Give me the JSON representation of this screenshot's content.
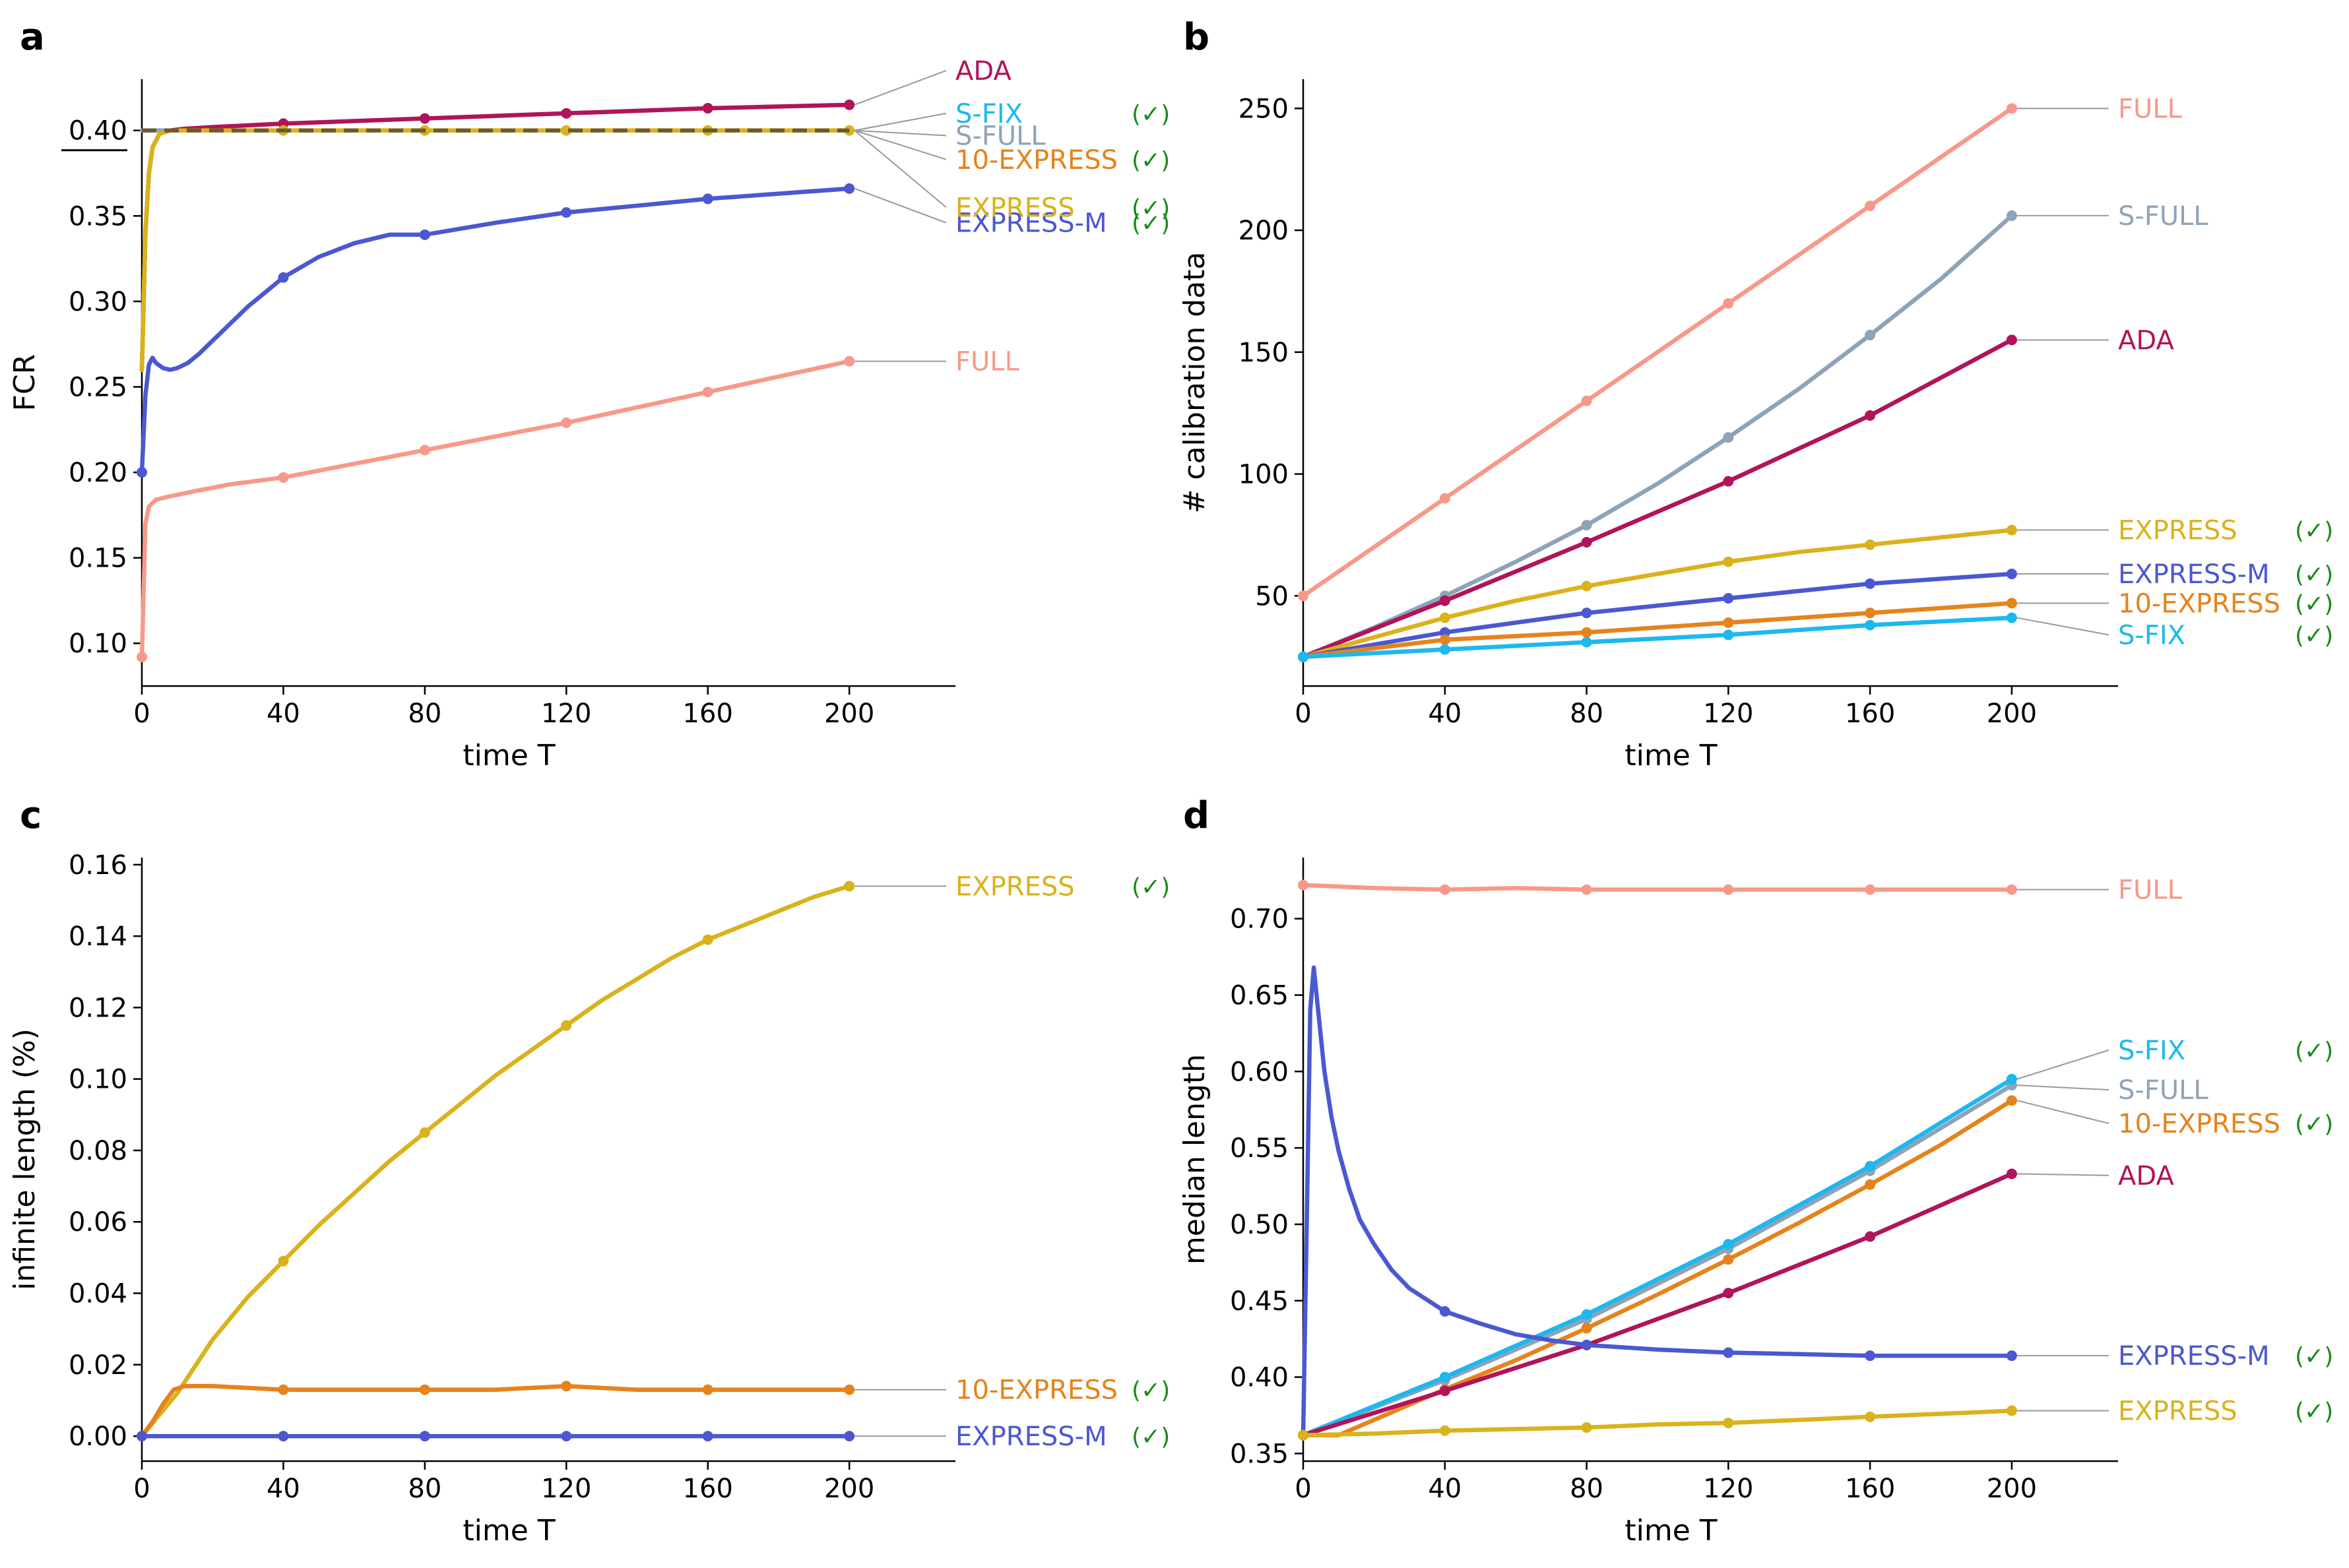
{
  "chart_data": [
    {
      "id": "a",
      "panel_letter": "a",
      "type": "line",
      "xlabel": "time T",
      "ylabel": "FCR",
      "xlim": [
        0,
        230
      ],
      "ylim": [
        0.075,
        0.43
      ],
      "xticks": [
        0,
        40,
        80,
        120,
        160,
        200
      ],
      "xtick_labels": [
        "0",
        "40",
        "80",
        "120",
        "160",
        "200"
      ],
      "yticks": [
        0.1,
        0.15,
        0.2,
        0.25,
        0.3,
        0.35,
        0.4
      ],
      "ytick_labels": [
        "0.10",
        "0.15",
        "0.20",
        "0.25",
        "0.30",
        "0.35",
        "0.40"
      ],
      "target_line": {
        "value": 0.4,
        "color": "#6b5a2e",
        "style": "dashed"
      },
      "series": [
        {
          "name": "FULL",
          "color": "#f7998a",
          "check": "",
          "label_y": 0.265,
          "x": [
            0,
            1,
            2,
            4,
            8,
            15,
            25,
            40,
            60,
            80,
            100,
            120,
            140,
            160,
            180,
            200
          ],
          "y": [
            0.092,
            0.17,
            0.18,
            0.184,
            0.186,
            0.189,
            0.193,
            0.197,
            0.205,
            0.213,
            0.221,
            0.229,
            0.238,
            0.247,
            0.256,
            0.265
          ],
          "markers_x": [
            0,
            40,
            80,
            120,
            160,
            200
          ]
        },
        {
          "name": "EXPRESS-M",
          "color": "#4b58d1",
          "check": "(✓)",
          "label_y": 0.346,
          "x": [
            0,
            1,
            2,
            3,
            4,
            6,
            8,
            10,
            13,
            16,
            20,
            25,
            30,
            40,
            50,
            60,
            70,
            80,
            100,
            120,
            140,
            160,
            180,
            200
          ],
          "y": [
            0.2,
            0.245,
            0.263,
            0.267,
            0.264,
            0.261,
            0.26,
            0.261,
            0.264,
            0.269,
            0.277,
            0.287,
            0.297,
            0.314,
            0.326,
            0.334,
            0.339,
            0.339,
            0.346,
            0.352,
            0.356,
            0.36,
            0.363,
            0.366
          ],
          "markers_x": [
            0,
            40,
            80,
            120,
            160,
            200
          ]
        },
        {
          "name": "ADA",
          "color": "#b0145a",
          "check": "",
          "label_y": 0.435,
          "x": [
            0,
            1,
            2,
            3,
            5,
            8,
            12,
            20,
            40,
            80,
            120,
            160,
            200
          ],
          "y": [
            0.26,
            0.34,
            0.375,
            0.39,
            0.398,
            0.4,
            0.401,
            0.402,
            0.404,
            0.407,
            0.41,
            0.413,
            0.415
          ],
          "markers_x": [
            40,
            80,
            120,
            160,
            200
          ]
        },
        {
          "name": "S-FIX",
          "color": "#1cb8ef",
          "check": "(✓)",
          "label_y": 0.41,
          "x": [
            0,
            1,
            2,
            3,
            5,
            8,
            12,
            20,
            200
          ],
          "y": [
            0.26,
            0.34,
            0.375,
            0.39,
            0.398,
            0.4,
            0.4,
            0.4,
            0.4
          ],
          "markers_x": []
        },
        {
          "name": "S-FULL",
          "color": "#8fa3b8",
          "check": "",
          "label_y": 0.397,
          "x": [
            0,
            200
          ],
          "y": [
            0.4,
            0.4
          ],
          "markers_x": []
        },
        {
          "name": "10-EXPRESS",
          "color": "#e5831c",
          "check": "(✓)",
          "label_y": 0.383,
          "x": [
            0,
            1,
            2,
            3,
            5,
            8,
            12,
            20,
            200
          ],
          "y": [
            0.26,
            0.34,
            0.375,
            0.39,
            0.398,
            0.4,
            0.4,
            0.4,
            0.4
          ],
          "markers_x": []
        },
        {
          "name": "EXPRESS",
          "color": "#d9b21c",
          "check": "(✓)",
          "label_y": 0.355,
          "x": [
            0,
            1,
            2,
            3,
            5,
            8,
            12,
            20,
            40,
            80,
            120,
            160,
            200
          ],
          "y": [
            0.26,
            0.34,
            0.375,
            0.39,
            0.398,
            0.4,
            0.4,
            0.4,
            0.4,
            0.4,
            0.4,
            0.4,
            0.4
          ],
          "markers_x": [
            40,
            80,
            120,
            160,
            200
          ]
        }
      ]
    },
    {
      "id": "b",
      "panel_letter": "b",
      "type": "line",
      "xlabel": "time T",
      "ylabel": "# calibration data",
      "xlim": [
        0,
        230
      ],
      "ylim": [
        13,
        262
      ],
      "xticks": [
        0,
        40,
        80,
        120,
        160,
        200
      ],
      "xtick_labels": [
        "0",
        "40",
        "80",
        "120",
        "160",
        "200"
      ],
      "yticks": [
        50,
        100,
        150,
        200,
        250
      ],
      "ytick_labels": [
        "50",
        "100",
        "150",
        "200",
        "250"
      ],
      "series": [
        {
          "name": "FULL",
          "color": "#f7998a",
          "check": "",
          "label_y": 250,
          "x": [
            0,
            40,
            80,
            120,
            160,
            200
          ],
          "y": [
            50,
            90,
            130,
            170,
            210,
            250
          ],
          "markers_x": [
            0,
            40,
            80,
            120,
            160,
            200
          ]
        },
        {
          "name": "S-FULL",
          "color": "#8fa3b8",
          "check": "",
          "label_y": 206,
          "x": [
            0,
            20,
            40,
            60,
            80,
            100,
            120,
            140,
            160,
            180,
            200
          ],
          "y": [
            25,
            37,
            50,
            64,
            79,
            96,
            115,
            135,
            157,
            180,
            206
          ],
          "markers_x": [
            0,
            40,
            80,
            120,
            160,
            200
          ]
        },
        {
          "name": "ADA",
          "color": "#b0145a",
          "check": "",
          "label_y": 155,
          "x": [
            0,
            40,
            80,
            120,
            160,
            200
          ],
          "y": [
            25,
            48,
            72,
            97,
            124,
            155
          ],
          "markers_x": [
            0,
            40,
            80,
            120,
            160,
            200
          ]
        },
        {
          "name": "EXPRESS",
          "color": "#d9b21c",
          "check": "(✓)",
          "label_y": 77,
          "x": [
            0,
            20,
            40,
            60,
            80,
            100,
            120,
            140,
            160,
            180,
            200
          ],
          "y": [
            25,
            33,
            41,
            48,
            54,
            59,
            64,
            68,
            71,
            74,
            77
          ],
          "markers_x": [
            0,
            40,
            80,
            120,
            160,
            200
          ]
        },
        {
          "name": "EXPRESS-M",
          "color": "#4b58d1",
          "check": "(✓)",
          "label_y": 59,
          "x": [
            0,
            20,
            40,
            60,
            80,
            100,
            120,
            140,
            160,
            180,
            200
          ],
          "y": [
            25,
            30,
            35,
            39,
            43,
            46,
            49,
            52,
            55,
            57,
            59
          ],
          "markers_x": [
            0,
            40,
            80,
            120,
            160,
            200
          ]
        },
        {
          "name": "10-EXPRESS",
          "color": "#e5831c",
          "check": "(✓)",
          "label_y": 47,
          "x": [
            0,
            40,
            80,
            120,
            160,
            200
          ],
          "y": [
            25,
            32,
            35,
            39,
            43,
            47
          ],
          "markers_x": [
            0,
            40,
            80,
            120,
            160,
            200
          ]
        },
        {
          "name": "S-FIX",
          "color": "#1cb8ef",
          "check": "(✓)",
          "label_y": 34,
          "x": [
            0,
            40,
            80,
            120,
            160,
            200
          ],
          "y": [
            25,
            28,
            31,
            34,
            38,
            41
          ],
          "markers_x": [
            0,
            40,
            80,
            120,
            160,
            200
          ]
        }
      ]
    },
    {
      "id": "c",
      "panel_letter": "c",
      "type": "line",
      "xlabel": "time T",
      "ylabel": "infinite length (%)",
      "xlim": [
        0,
        230
      ],
      "ylim": [
        -0.007,
        0.162
      ],
      "xticks": [
        0,
        40,
        80,
        120,
        160,
        200
      ],
      "xtick_labels": [
        "0",
        "40",
        "80",
        "120",
        "160",
        "200"
      ],
      "yticks": [
        0.0,
        0.02,
        0.04,
        0.06,
        0.08,
        0.1,
        0.12,
        0.14,
        0.16
      ],
      "ytick_labels": [
        "0.00",
        "0.02",
        "0.04",
        "0.06",
        "0.08",
        "0.10",
        "0.12",
        "0.14",
        "0.16"
      ],
      "series": [
        {
          "name": "EXPRESS",
          "color": "#d9b21c",
          "check": "(✓)",
          "label_y": 0.154,
          "x": [
            0,
            10,
            20,
            30,
            40,
            50,
            60,
            70,
            80,
            90,
            100,
            110,
            120,
            130,
            140,
            150,
            160,
            170,
            180,
            190,
            200
          ],
          "y": [
            0.0,
            0.012,
            0.027,
            0.039,
            0.049,
            0.059,
            0.068,
            0.077,
            0.085,
            0.093,
            0.101,
            0.108,
            0.115,
            0.122,
            0.128,
            0.134,
            0.139,
            0.143,
            0.147,
            0.151,
            0.154
          ],
          "markers_x": [
            0,
            40,
            80,
            120,
            160,
            200
          ]
        },
        {
          "name": "10-EXPRESS",
          "color": "#e5831c",
          "check": "(✓)",
          "label_y": 0.013,
          "x": [
            0,
            3,
            6,
            9,
            12,
            20,
            40,
            60,
            80,
            100,
            120,
            140,
            160,
            180,
            200
          ],
          "y": [
            0.0,
            0.004,
            0.009,
            0.013,
            0.014,
            0.014,
            0.013,
            0.013,
            0.013,
            0.013,
            0.014,
            0.013,
            0.013,
            0.013,
            0.013
          ],
          "markers_x": [
            0,
            40,
            80,
            120,
            160,
            200
          ]
        },
        {
          "name": "EXPRESS-M",
          "color": "#4b58d1",
          "check": "(✓)",
          "label_y": 0.0,
          "x": [
            0,
            200
          ],
          "y": [
            0.0,
            0.0
          ],
          "markers_x": [
            0,
            40,
            80,
            120,
            160,
            200
          ]
        }
      ]
    },
    {
      "id": "d",
      "panel_letter": "d",
      "type": "line",
      "xlabel": "time T",
      "ylabel": "median length",
      "xlim": [
        0,
        230
      ],
      "ylim": [
        0.345,
        0.74
      ],
      "xticks": [
        0,
        40,
        80,
        120,
        160,
        200
      ],
      "xtick_labels": [
        "0",
        "40",
        "80",
        "120",
        "160",
        "200"
      ],
      "yticks": [
        0.35,
        0.4,
        0.45,
        0.5,
        0.55,
        0.6,
        0.65,
        0.7
      ],
      "ytick_labels": [
        "0.35",
        "0.40",
        "0.45",
        "0.50",
        "0.55",
        "0.60",
        "0.65",
        "0.70"
      ],
      "series": [
        {
          "name": "FULL",
          "color": "#f7998a",
          "check": "",
          "label_y": 0.719,
          "x": [
            0,
            20,
            40,
            60,
            80,
            100,
            120,
            140,
            160,
            180,
            200
          ],
          "y": [
            0.722,
            0.72,
            0.719,
            0.72,
            0.719,
            0.719,
            0.719,
            0.719,
            0.719,
            0.719,
            0.719
          ],
          "markers_x": [
            0,
            40,
            80,
            120,
            160,
            200
          ]
        },
        {
          "name": "S-FULL",
          "color": "#8fa3b8",
          "check": "",
          "label_y": 0.588,
          "x": [
            0,
            40,
            80,
            120,
            160,
            200
          ],
          "y": [
            0.362,
            0.398,
            0.438,
            0.484,
            0.535,
            0.591
          ],
          "markers_x": [
            0,
            40,
            80,
            120,
            160,
            200
          ]
        },
        {
          "name": "S-FIX",
          "color": "#1cb8ef",
          "check": "(✓)",
          "label_y": 0.614,
          "x": [
            0,
            40,
            80,
            120,
            160,
            200
          ],
          "y": [
            0.362,
            0.4,
            0.441,
            0.487,
            0.538,
            0.595
          ],
          "markers_x": [
            0,
            40,
            80,
            120,
            160,
            200
          ]
        },
        {
          "name": "10-EXPRESS",
          "color": "#e5831c",
          "check": "(✓)",
          "label_y": 0.566,
          "x": [
            0,
            10,
            20,
            40,
            60,
            80,
            100,
            120,
            140,
            160,
            180,
            200
          ],
          "y": [
            0.362,
            0.362,
            0.372,
            0.392,
            0.411,
            0.432,
            0.454,
            0.477,
            0.501,
            0.526,
            0.552,
            0.581
          ],
          "markers_x": [
            0,
            40,
            80,
            120,
            160,
            200
          ]
        },
        {
          "name": "ADA",
          "color": "#b0145a",
          "check": "",
          "label_y": 0.532,
          "x": [
            0,
            40,
            80,
            120,
            160,
            200
          ],
          "y": [
            0.362,
            0.391,
            0.421,
            0.455,
            0.492,
            0.533
          ],
          "markers_x": [
            0,
            40,
            80,
            120,
            160,
            200
          ]
        },
        {
          "name": "EXPRESS-M",
          "color": "#4b58d1",
          "check": "(✓)",
          "label_y": 0.414,
          "x": [
            0,
            1,
            2,
            3,
            4,
            6,
            8,
            10,
            13,
            16,
            20,
            25,
            30,
            40,
            50,
            60,
            70,
            80,
            100,
            120,
            140,
            160,
            180,
            200
          ],
          "y": [
            0.362,
            0.5,
            0.64,
            0.668,
            0.645,
            0.6,
            0.57,
            0.548,
            0.523,
            0.503,
            0.487,
            0.47,
            0.458,
            0.443,
            0.435,
            0.428,
            0.424,
            0.421,
            0.418,
            0.416,
            0.415,
            0.414,
            0.414,
            0.414
          ],
          "markers_x": [
            40,
            80,
            120,
            160,
            200
          ]
        },
        {
          "name": "EXPRESS",
          "color": "#d9b21c",
          "check": "(✓)",
          "label_y": 0.378,
          "x": [
            0,
            20,
            40,
            60,
            80,
            100,
            120,
            140,
            160,
            180,
            200
          ],
          "y": [
            0.362,
            0.363,
            0.365,
            0.366,
            0.367,
            0.369,
            0.37,
            0.372,
            0.374,
            0.376,
            0.378
          ],
          "markers_x": [
            0,
            40,
            80,
            120,
            160,
            200
          ]
        }
      ]
    }
  ]
}
